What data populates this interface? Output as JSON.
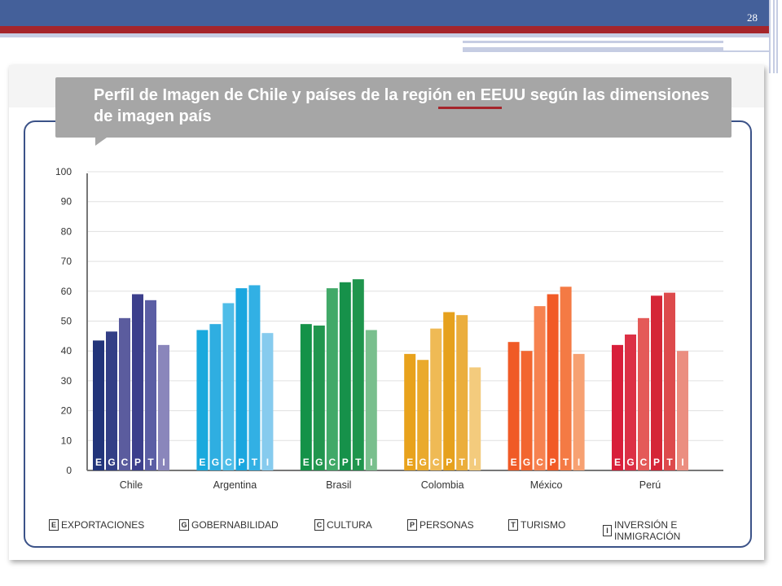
{
  "slide": {
    "number": "28"
  },
  "title": "Perfil de Imagen de Chile y países de la región en EEUU según las dimensiones de imagen país",
  "chart_data": {
    "type": "bar",
    "ylim": [
      0,
      100
    ],
    "yticks": [
      0,
      10,
      20,
      30,
      40,
      50,
      60,
      70,
      80,
      90,
      100
    ],
    "grid": true,
    "bar_letters": [
      "E",
      "G",
      "C",
      "P",
      "T",
      "I"
    ],
    "categories": [
      "Chile",
      "Argentina",
      "Brasil",
      "Colombia",
      "México",
      "Perú"
    ],
    "groups": [
      {
        "name": "Chile",
        "values": [
          43.5,
          46.5,
          51,
          59,
          57,
          42
        ],
        "colors": [
          "#22347a",
          "#333f86",
          "#5b5c9e",
          "#3c3f8c",
          "#5b5ea4",
          "#8a86bb"
        ]
      },
      {
        "name": "Argentina",
        "values": [
          47,
          49,
          56,
          61,
          62,
          46
        ],
        "colors": [
          "#19a9dd",
          "#2faee1",
          "#4fbde8",
          "#1aa6df",
          "#32b0e4",
          "#86cbee"
        ]
      },
      {
        "name": "Brasil",
        "values": [
          49,
          48.5,
          61,
          63,
          64,
          47
        ],
        "colors": [
          "#149248",
          "#21964e",
          "#41a968",
          "#16914a",
          "#1f954d",
          "#79bf8d"
        ]
      },
      {
        "name": "Colombia",
        "values": [
          39,
          37,
          47.5,
          53,
          52,
          34.5
        ],
        "colors": [
          "#e8a21c",
          "#eaaa2c",
          "#efba55",
          "#e6a11d",
          "#ebae3d",
          "#f3cb7d"
        ]
      },
      {
        "name": "México",
        "values": [
          43,
          40,
          55,
          59,
          61.5,
          39
        ],
        "colors": [
          "#f05a26",
          "#f26630",
          "#f68250",
          "#f15a26",
          "#f47a44",
          "#f7a172"
        ]
      },
      {
        "name": "Perú",
        "values": [
          42,
          45.5,
          51,
          58.5,
          59.5,
          40
        ],
        "colors": [
          "#d81e3a",
          "#dc3045",
          "#e45a58",
          "#d52637",
          "#dd4a4c",
          "#eb8e80"
        ]
      }
    ]
  },
  "legend": [
    {
      "key": "E",
      "label": "EXPORTACIONES"
    },
    {
      "key": "G",
      "label": "GOBERNABILIDAD"
    },
    {
      "key": "C",
      "label": "CULTURA"
    },
    {
      "key": "P",
      "label": "PERSONAS"
    },
    {
      "key": "T",
      "label": "TURISMO"
    },
    {
      "key": "I",
      "label": "INVERSIÓN E INMIGRACIÓN"
    }
  ]
}
